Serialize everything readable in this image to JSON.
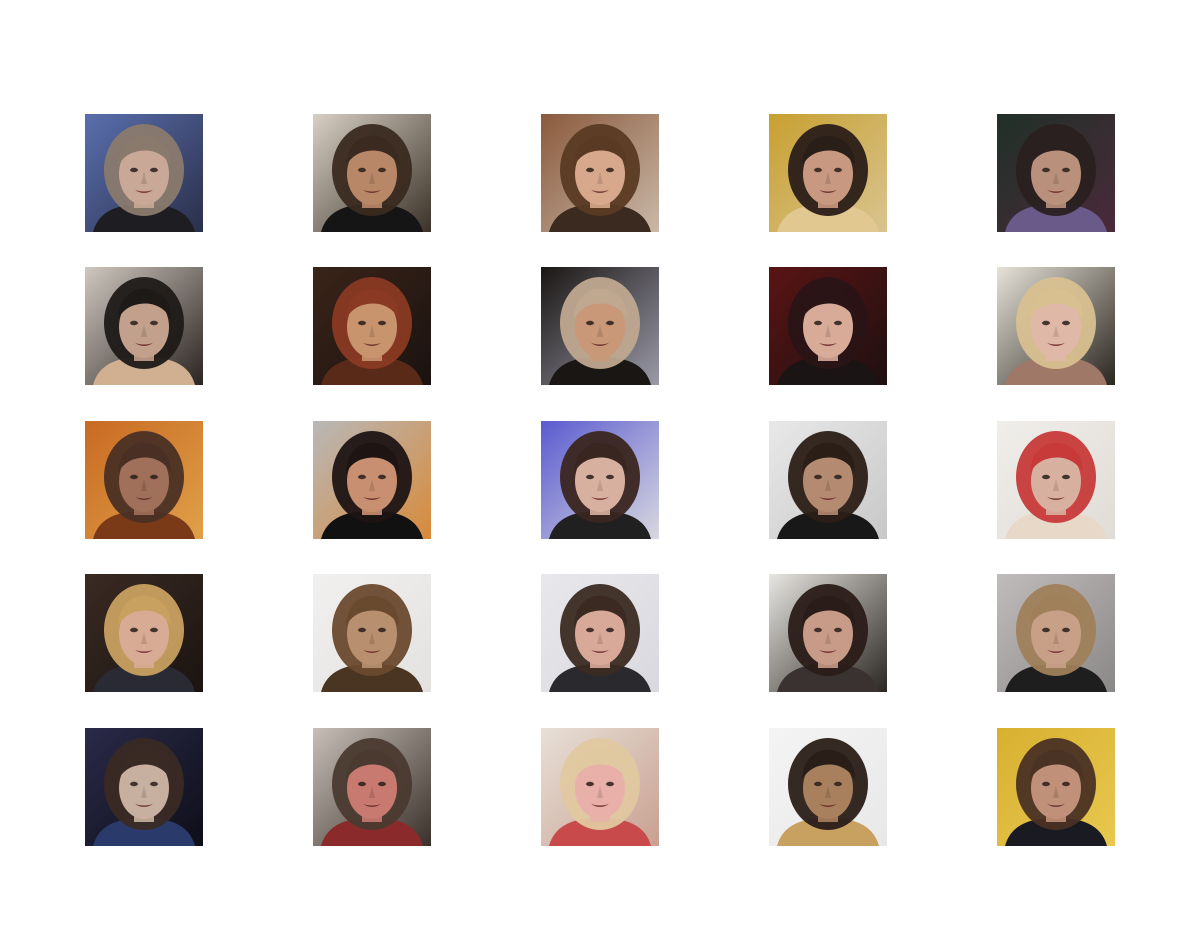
{
  "figure": {
    "rows": 5,
    "cols": 5,
    "subject": "face",
    "background_color": "#ffffff",
    "tiles": [
      {
        "bg": [
          "#5a6fae",
          "#2a2f4a"
        ],
        "hair": "#8a7a6e",
        "skin": "#c9a897",
        "clothes": "#1e1e22"
      },
      {
        "bg": [
          "#d8d0c4",
          "#3a3228"
        ],
        "hair": "#3a2a20",
        "skin": "#b88768",
        "clothes": "#151515"
      },
      {
        "bg": [
          "#8a5a3c",
          "#c9b8a8"
        ],
        "hair": "#5a3a22",
        "skin": "#d7a88c",
        "clothes": "#3a2a20"
      },
      {
        "bg": [
          "#c8a030",
          "#d8c490"
        ],
        "hair": "#2a1e18",
        "skin": "#c99880",
        "clothes": "#e0c890"
      },
      {
        "bg": [
          "#203028",
          "#4a2a3a"
        ],
        "hair": "#2a2020",
        "skin": "#b9907c",
        "clothes": "#6a5a8a"
      },
      {
        "bg": [
          "#cfc8c0",
          "#2a2422"
        ],
        "hair": "#1e1a18",
        "skin": "#c2a08c",
        "clothes": "#d0b090"
      },
      {
        "bg": [
          "#3a2418",
          "#1a1210"
        ],
        "hair": "#8a3a22",
        "skin": "#c8946e",
        "clothes": "#5a2a18"
      },
      {
        "bg": [
          "#1a1614",
          "#9a9aa8"
        ],
        "hair": "#c0a890",
        "skin": "#c89878",
        "clothes": "#1a1614"
      },
      {
        "bg": [
          "#5a1414",
          "#1e1010"
        ],
        "hair": "#2a1416",
        "skin": "#d8aa98",
        "clothes": "#1a1414"
      },
      {
        "bg": [
          "#e6e2d8",
          "#2a2620"
        ],
        "hair": "#d8c090",
        "skin": "#e0b8a8",
        "clothes": "#a07868"
      },
      {
        "bg": [
          "#c86a22",
          "#e0a048"
        ],
        "hair": "#4a3024",
        "skin": "#a0705a",
        "clothes": "#7a3a18"
      },
      {
        "bg": [
          "#b8b8b8",
          "#d88a3a"
        ],
        "hair": "#1e1414",
        "skin": "#c89070",
        "clothes": "#111111"
      },
      {
        "bg": [
          "#5a5ad0",
          "#d8d8e0"
        ],
        "hair": "#3a2620",
        "skin": "#d8b0a0",
        "clothes": "#202020"
      },
      {
        "bg": [
          "#e8e8e8",
          "#c8c8c8"
        ],
        "hair": "#2a1e16",
        "skin": "#b48a70",
        "clothes": "#181818"
      },
      {
        "bg": [
          "#f0eeea",
          "#e0dcd8"
        ],
        "hair": "#c83a3a",
        "skin": "#d8b0a0",
        "clothes": "#e8d8c8"
      },
      {
        "bg": [
          "#3a2a22",
          "#1a1412"
        ],
        "hair": "#c8a060",
        "skin": "#d8ac94",
        "clothes": "#2a2a34"
      },
      {
        "bg": [
          "#f2f0ee",
          "#e4e2e0"
        ],
        "hair": "#6a4a2e",
        "skin": "#b89070",
        "clothes": "#4a3422"
      },
      {
        "bg": [
          "#e8e8ec",
          "#d8d8de"
        ],
        "hair": "#3a2a22",
        "skin": "#d8a898",
        "clothes": "#2a2a2e"
      },
      {
        "bg": [
          "#e8e6e2",
          "#2a2622"
        ],
        "hair": "#2a1c18",
        "skin": "#c89a88",
        "clothes": "#3a3230"
      },
      {
        "bg": [
          "#c0bcbc",
          "#8a8886"
        ],
        "hair": "#a0805a",
        "skin": "#c8a088",
        "clothes": "#1e1e1e"
      },
      {
        "bg": [
          "#2a2a4a",
          "#0e0e18"
        ],
        "hair": "#3a2a24",
        "skin": "#c8b0a0",
        "clothes": "#2a3a6a"
      },
      {
        "bg": [
          "#c8c0b8",
          "#3a302a"
        ],
        "hair": "#4a3a30",
        "skin": "#c87a70",
        "clothes": "#8a2a2a"
      },
      {
        "bg": [
          "#e8e0d8",
          "#c8a090"
        ],
        "hair": "#e0c8a0",
        "skin": "#e8b0a8",
        "clothes": "#c84a4a"
      },
      {
        "bg": [
          "#f4f4f4",
          "#e8e8e8"
        ],
        "hair": "#2a1e18",
        "skin": "#a8805e",
        "clothes": "#c8a060"
      },
      {
        "bg": [
          "#d8b030",
          "#e8c850"
        ],
        "hair": "#4a3224",
        "skin": "#c09078",
        "clothes": "#1a1a22"
      }
    ]
  }
}
